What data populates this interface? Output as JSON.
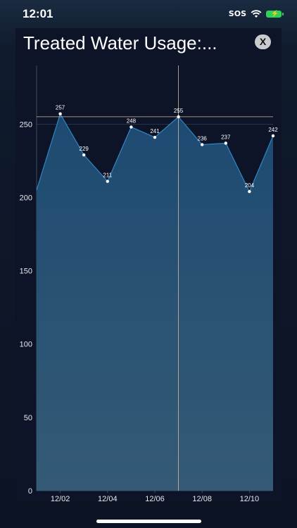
{
  "status_bar": {
    "time": "12:01",
    "signal_label": "SOS"
  },
  "modal": {
    "title": "Treated Water Usage:...",
    "close_label": "X"
  },
  "colors": {
    "background": "#0d1428",
    "area_top": "#1e4a72",
    "area_bottom": "#345a75",
    "line": "#2e87c8",
    "crosshair": "#d9b99a",
    "grid": "#4b5b6e"
  },
  "chart_data": {
    "type": "area",
    "x": [
      "12/01",
      "12/02",
      "12/03",
      "12/04",
      "12/05",
      "12/06",
      "12/07",
      "12/08",
      "12/09",
      "12/10",
      "12/11"
    ],
    "values": [
      205,
      257,
      229,
      211,
      248,
      241,
      255,
      236,
      237,
      204,
      242
    ],
    "point_labels_visible_from_index": 1,
    "x_tick_labels": [
      "12/02",
      "12/04",
      "12/06",
      "12/08",
      "12/10"
    ],
    "y_ticks": [
      0,
      50,
      100,
      150,
      200,
      250
    ],
    "ylim": [
      0,
      290
    ],
    "crosshair_x": "12/07",
    "crosshair_y": 255,
    "grid": true,
    "title": "",
    "xlabel": "",
    "ylabel": ""
  }
}
